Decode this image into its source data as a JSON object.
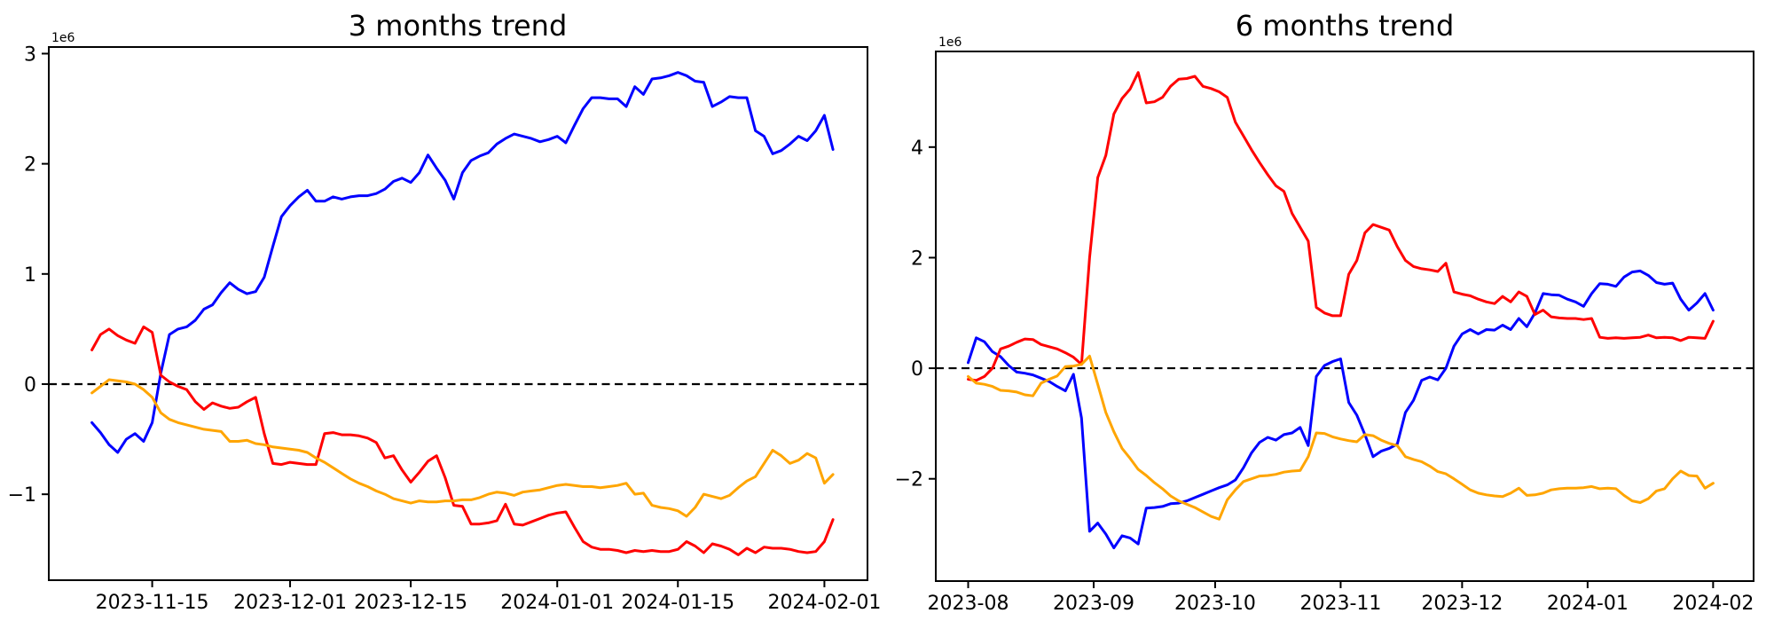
{
  "figure": {
    "background_color": "#ffffff",
    "text_color": "#000000",
    "series_colors": {
      "blue": "#0000ff",
      "red": "#ff0000",
      "orange": "#ffa500"
    }
  },
  "chart_data": [
    {
      "type": "line",
      "title": "3 months trend",
      "offset_text": "1e6",
      "xlabel": "",
      "ylabel": "",
      "grid": false,
      "legend": "none",
      "zero_line": true,
      "ylim": [
        -1.78,
        3.06
      ],
      "xlim": [
        "2023-11-03",
        "2024-02-06"
      ],
      "y_ticks": [
        {
          "value": 3,
          "label": "3"
        },
        {
          "value": 2,
          "label": "2"
        },
        {
          "value": 1,
          "label": "1"
        },
        {
          "value": 0,
          "label": "0"
        },
        {
          "value": -1,
          "label": "−1"
        }
      ],
      "x_ticks": [
        {
          "date": "2023-11-15",
          "label": "2023-11-15"
        },
        {
          "date": "2023-12-01",
          "label": "2023-12-01"
        },
        {
          "date": "2023-12-15",
          "label": "2023-12-15"
        },
        {
          "date": "2024-01-01",
          "label": "2024-01-01"
        },
        {
          "date": "2024-01-15",
          "label": "2024-01-15"
        },
        {
          "date": "2024-02-01",
          "label": "2024-02-01"
        }
      ],
      "x": [
        "2023-11-08",
        "2023-11-09",
        "2023-11-10",
        "2023-11-11",
        "2023-11-12",
        "2023-11-13",
        "2023-11-14",
        "2023-11-15",
        "2023-11-16",
        "2023-11-17",
        "2023-11-18",
        "2023-11-19",
        "2023-11-20",
        "2023-11-21",
        "2023-11-22",
        "2023-11-23",
        "2023-11-24",
        "2023-11-25",
        "2023-11-26",
        "2023-11-27",
        "2023-11-28",
        "2023-11-29",
        "2023-11-30",
        "2023-12-01",
        "2023-12-02",
        "2023-12-03",
        "2023-12-04",
        "2023-12-05",
        "2023-12-06",
        "2023-12-07",
        "2023-12-08",
        "2023-12-09",
        "2023-12-10",
        "2023-12-11",
        "2023-12-12",
        "2023-12-13",
        "2023-12-14",
        "2023-12-15",
        "2023-12-16",
        "2023-12-17",
        "2023-12-18",
        "2023-12-19",
        "2023-12-20",
        "2023-12-21",
        "2023-12-22",
        "2023-12-23",
        "2023-12-24",
        "2023-12-25",
        "2023-12-26",
        "2023-12-27",
        "2023-12-28",
        "2023-12-29",
        "2023-12-30",
        "2023-12-31",
        "2024-01-01",
        "2024-01-02",
        "2024-01-03",
        "2024-01-04",
        "2024-01-05",
        "2024-01-06",
        "2024-01-07",
        "2024-01-08",
        "2024-01-09",
        "2024-01-10",
        "2024-01-11",
        "2024-01-12",
        "2024-01-13",
        "2024-01-14",
        "2024-01-15",
        "2024-01-16",
        "2024-01-17",
        "2024-01-18",
        "2024-01-19",
        "2024-01-20",
        "2024-01-21",
        "2024-01-22",
        "2024-01-23",
        "2024-01-24",
        "2024-01-25",
        "2024-01-26",
        "2024-01-27",
        "2024-01-28",
        "2024-01-29",
        "2024-01-30",
        "2024-01-31",
        "2024-02-01",
        "2024-02-02"
      ],
      "series": [
        {
          "name": "blue",
          "color": "#0000ff",
          "values": [
            -0.35,
            -0.44,
            -0.55,
            -0.62,
            -0.5,
            -0.45,
            -0.52,
            -0.35,
            0.1,
            0.45,
            0.5,
            0.52,
            0.58,
            0.68,
            0.72,
            0.83,
            0.92,
            0.86,
            0.82,
            0.84,
            0.97,
            1.25,
            1.52,
            1.62,
            1.7,
            1.76,
            1.66,
            1.66,
            1.7,
            1.68,
            1.7,
            1.71,
            1.71,
            1.73,
            1.77,
            1.84,
            1.87,
            1.83,
            1.92,
            2.08,
            1.96,
            1.85,
            1.68,
            1.92,
            2.03,
            2.07,
            2.1,
            2.18,
            2.23,
            2.27,
            2.25,
            2.23,
            2.2,
            2.22,
            2.25,
            2.19,
            2.35,
            2.5,
            2.6,
            2.6,
            2.59,
            2.59,
            2.52,
            2.7,
            2.63,
            2.77,
            2.78,
            2.8,
            2.83,
            2.8,
            2.75,
            2.74,
            2.52,
            2.56,
            2.61,
            2.6,
            2.6,
            2.3,
            2.25,
            2.09,
            2.12,
            2.18,
            2.25,
            2.21,
            2.3,
            2.44,
            2.13
          ]
        },
        {
          "name": "red",
          "color": "#ff0000",
          "values": [
            0.31,
            0.45,
            0.5,
            0.44,
            0.4,
            0.37,
            0.52,
            0.47,
            0.08,
            0.02,
            -0.02,
            -0.05,
            -0.16,
            -0.23,
            -0.17,
            -0.2,
            -0.22,
            -0.21,
            -0.16,
            -0.12,
            -0.45,
            -0.72,
            -0.73,
            -0.71,
            -0.72,
            -0.73,
            -0.73,
            -0.45,
            -0.44,
            -0.46,
            -0.46,
            -0.47,
            -0.49,
            -0.53,
            -0.67,
            -0.65,
            -0.78,
            -0.89,
            -0.8,
            -0.7,
            -0.65,
            -0.85,
            -1.1,
            -1.11,
            -1.27,
            -1.27,
            -1.26,
            -1.24,
            -1.09,
            -1.27,
            -1.28,
            -1.25,
            -1.22,
            -1.19,
            -1.17,
            -1.16,
            -1.3,
            -1.43,
            -1.48,
            -1.5,
            -1.5,
            -1.51,
            -1.53,
            -1.51,
            -1.52,
            -1.51,
            -1.52,
            -1.52,
            -1.5,
            -1.43,
            -1.47,
            -1.53,
            -1.45,
            -1.47,
            -1.5,
            -1.55,
            -1.49,
            -1.53,
            -1.48,
            -1.49,
            -1.49,
            -1.5,
            -1.52,
            -1.53,
            -1.52,
            -1.43,
            -1.23
          ]
        },
        {
          "name": "orange",
          "color": "#ffa500",
          "values": [
            -0.08,
            -0.02,
            0.04,
            0.03,
            0.02,
            0.0,
            -0.05,
            -0.12,
            -0.26,
            -0.32,
            -0.35,
            -0.37,
            -0.39,
            -0.41,
            -0.42,
            -0.43,
            -0.52,
            -0.52,
            -0.51,
            -0.54,
            -0.55,
            -0.57,
            -0.58,
            -0.59,
            -0.6,
            -0.62,
            -0.67,
            -0.71,
            -0.76,
            -0.81,
            -0.86,
            -0.9,
            -0.93,
            -0.97,
            -1.0,
            -1.04,
            -1.06,
            -1.08,
            -1.06,
            -1.07,
            -1.07,
            -1.06,
            -1.06,
            -1.05,
            -1.05,
            -1.03,
            -1.0,
            -0.98,
            -0.99,
            -1.01,
            -0.98,
            -0.97,
            -0.96,
            -0.94,
            -0.92,
            -0.91,
            -0.92,
            -0.93,
            -0.93,
            -0.94,
            -0.93,
            -0.92,
            -0.9,
            -1.0,
            -0.99,
            -1.1,
            -1.12,
            -1.13,
            -1.15,
            -1.2,
            -1.12,
            -1.0,
            -1.02,
            -1.04,
            -1.01,
            -0.94,
            -0.88,
            -0.84,
            -0.72,
            -0.6,
            -0.65,
            -0.72,
            -0.69,
            -0.63,
            -0.67,
            -0.9,
            -0.82
          ]
        }
      ]
    },
    {
      "type": "line",
      "title": "6 months trend",
      "offset_text": "1e6",
      "xlabel": "",
      "ylabel": "",
      "grid": false,
      "legend": "none",
      "zero_line": true,
      "ylim": [
        -3.85,
        5.73
      ],
      "xlim": [
        "2023-07-24",
        "2024-02-11"
      ],
      "y_ticks": [
        {
          "value": 4,
          "label": "4"
        },
        {
          "value": 2,
          "label": "2"
        },
        {
          "value": 0,
          "label": "0"
        },
        {
          "value": -2,
          "label": "−2"
        }
      ],
      "x_ticks": [
        {
          "date": "2023-08-01",
          "label": "2023-08"
        },
        {
          "date": "2023-09-01",
          "label": "2023-09"
        },
        {
          "date": "2023-10-01",
          "label": "2023-10"
        },
        {
          "date": "2023-11-01",
          "label": "2023-11"
        },
        {
          "date": "2023-12-01",
          "label": "2023-12"
        },
        {
          "date": "2024-01-01",
          "label": "2024-01"
        },
        {
          "date": "2024-02-01",
          "label": "2024-02"
        }
      ],
      "x": [
        "2023-08-01",
        "2023-08-03",
        "2023-08-05",
        "2023-08-07",
        "2023-08-09",
        "2023-08-11",
        "2023-08-13",
        "2023-08-15",
        "2023-08-17",
        "2023-08-19",
        "2023-08-21",
        "2023-08-23",
        "2023-08-25",
        "2023-08-27",
        "2023-08-29",
        "2023-08-31",
        "2023-09-02",
        "2023-09-04",
        "2023-09-06",
        "2023-09-08",
        "2023-09-10",
        "2023-09-12",
        "2023-09-14",
        "2023-09-16",
        "2023-09-18",
        "2023-09-20",
        "2023-09-22",
        "2023-09-24",
        "2023-09-26",
        "2023-09-28",
        "2023-09-30",
        "2023-10-02",
        "2023-10-04",
        "2023-10-06",
        "2023-10-08",
        "2023-10-10",
        "2023-10-12",
        "2023-10-14",
        "2023-10-16",
        "2023-10-18",
        "2023-10-20",
        "2023-10-22",
        "2023-10-24",
        "2023-10-26",
        "2023-10-28",
        "2023-10-30",
        "2023-11-01",
        "2023-11-03",
        "2023-11-05",
        "2023-11-07",
        "2023-11-09",
        "2023-11-11",
        "2023-11-13",
        "2023-11-15",
        "2023-11-17",
        "2023-11-19",
        "2023-11-21",
        "2023-11-23",
        "2023-11-25",
        "2023-11-27",
        "2023-11-29",
        "2023-12-01",
        "2023-12-03",
        "2023-12-05",
        "2023-12-07",
        "2023-12-09",
        "2023-12-11",
        "2023-12-13",
        "2023-12-15",
        "2023-12-17",
        "2023-12-19",
        "2023-12-21",
        "2023-12-23",
        "2023-12-25",
        "2023-12-27",
        "2023-12-29",
        "2023-12-31",
        "2024-01-02",
        "2024-01-04",
        "2024-01-06",
        "2024-01-08",
        "2024-01-10",
        "2024-01-12",
        "2024-01-14",
        "2024-01-16",
        "2024-01-18",
        "2024-01-20",
        "2024-01-22",
        "2024-01-24",
        "2024-01-26",
        "2024-01-28",
        "2024-01-30",
        "2024-02-01"
      ],
      "series": [
        {
          "name": "blue",
          "color": "#0000ff",
          "values": [
            0.1,
            0.55,
            0.48,
            0.3,
            0.21,
            0.05,
            -0.07,
            -0.09,
            -0.12,
            -0.18,
            -0.24,
            -0.33,
            -0.41,
            -0.11,
            -0.9,
            -2.95,
            -2.8,
            -3.0,
            -3.25,
            -3.03,
            -3.07,
            -3.18,
            -2.53,
            -2.52,
            -2.5,
            -2.45,
            -2.44,
            -2.4,
            -2.34,
            -2.28,
            -2.22,
            -2.16,
            -2.11,
            -2.02,
            -1.8,
            -1.53,
            -1.34,
            -1.25,
            -1.3,
            -1.2,
            -1.17,
            -1.07,
            -1.4,
            -0.15,
            0.05,
            0.12,
            0.17,
            -0.62,
            -0.85,
            -1.2,
            -1.6,
            -1.5,
            -1.45,
            -1.37,
            -0.8,
            -0.58,
            -0.22,
            -0.16,
            -0.21,
            0.0,
            0.4,
            0.62,
            0.7,
            0.62,
            0.7,
            0.69,
            0.78,
            0.7,
            0.9,
            0.75,
            1.0,
            1.35,
            1.33,
            1.32,
            1.25,
            1.2,
            1.12,
            1.35,
            1.53,
            1.52,
            1.48,
            1.65,
            1.74,
            1.76,
            1.68,
            1.55,
            1.52,
            1.54,
            1.25,
            1.05,
            1.18,
            1.35,
            1.05
          ]
        },
        {
          "name": "red",
          "color": "#ff0000",
          "values": [
            -0.2,
            -0.22,
            -0.15,
            0.0,
            0.35,
            0.4,
            0.47,
            0.53,
            0.52,
            0.43,
            0.39,
            0.35,
            0.28,
            0.2,
            0.07,
            2.0,
            3.45,
            3.85,
            4.6,
            4.88,
            5.05,
            5.35,
            4.8,
            4.82,
            4.9,
            5.1,
            5.23,
            5.24,
            5.28,
            5.1,
            5.06,
            5.0,
            4.9,
            4.45,
            4.2,
            3.95,
            3.72,
            3.5,
            3.3,
            3.2,
            2.8,
            2.55,
            2.3,
            1.1,
            1.0,
            0.95,
            0.95,
            1.7,
            1.95,
            2.45,
            2.6,
            2.55,
            2.5,
            2.2,
            1.95,
            1.84,
            1.8,
            1.78,
            1.75,
            1.9,
            1.38,
            1.34,
            1.31,
            1.25,
            1.2,
            1.17,
            1.3,
            1.2,
            1.38,
            1.3,
            0.97,
            1.05,
            0.93,
            0.91,
            0.9,
            0.9,
            0.88,
            0.9,
            0.56,
            0.54,
            0.55,
            0.54,
            0.55,
            0.56,
            0.6,
            0.55,
            0.56,
            0.55,
            0.5,
            0.56,
            0.55,
            0.54,
            0.85
          ]
        },
        {
          "name": "orange",
          "color": "#ffa500",
          "values": [
            -0.15,
            -0.27,
            -0.29,
            -0.33,
            -0.4,
            -0.41,
            -0.43,
            -0.48,
            -0.5,
            -0.27,
            -0.2,
            -0.14,
            0.03,
            0.04,
            0.07,
            0.22,
            -0.29,
            -0.8,
            -1.15,
            -1.45,
            -1.63,
            -1.83,
            -1.94,
            -2.07,
            -2.18,
            -2.31,
            -2.4,
            -2.46,
            -2.52,
            -2.6,
            -2.68,
            -2.73,
            -2.38,
            -2.2,
            -2.05,
            -2.0,
            -1.95,
            -1.94,
            -1.92,
            -1.88,
            -1.86,
            -1.85,
            -1.6,
            -1.17,
            -1.18,
            -1.24,
            -1.28,
            -1.31,
            -1.33,
            -1.2,
            -1.22,
            -1.3,
            -1.36,
            -1.4,
            -1.6,
            -1.65,
            -1.69,
            -1.77,
            -1.87,
            -1.91,
            -2.0,
            -2.1,
            -2.2,
            -2.26,
            -2.29,
            -2.31,
            -2.32,
            -2.26,
            -2.17,
            -2.3,
            -2.29,
            -2.26,
            -2.2,
            -2.18,
            -2.17,
            -2.17,
            -2.16,
            -2.14,
            -2.18,
            -2.17,
            -2.18,
            -2.3,
            -2.4,
            -2.43,
            -2.36,
            -2.22,
            -2.18,
            -2.0,
            -1.86,
            -1.94,
            -1.95,
            -2.17,
            -2.08
          ]
        }
      ]
    }
  ]
}
